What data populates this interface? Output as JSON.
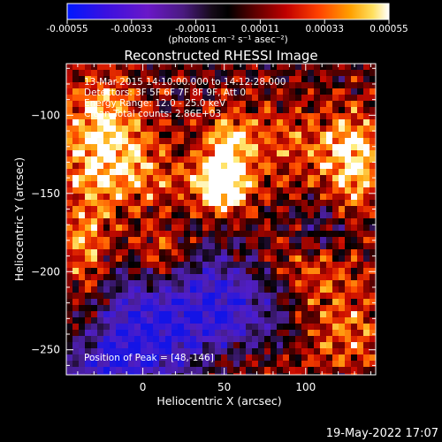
{
  "colorbar": {
    "tick_labels": [
      "-0.00055",
      "-0.00033",
      "-0.00011",
      "0.00011",
      "0.00033",
      "0.00055"
    ],
    "unit_label": "(photons cm⁻² s⁻¹ asec⁻²)",
    "range": [
      -0.00055,
      0.00055
    ]
  },
  "chart_data": {
    "type": "heatmap",
    "title": "Reconstructed RHESSI Image",
    "xlabel": "Heliocentric X (arcsec)",
    "ylabel": "Heliocentric Y (arcsec)",
    "xlim": [
      -47,
      143
    ],
    "ylim": [
      -266,
      -67
    ],
    "x_ticks": [
      0,
      50,
      100
    ],
    "x_tick_labels": [
      "0",
      "50",
      "100"
    ],
    "y_ticks": [
      -250,
      -200,
      -150,
      -100
    ],
    "y_tick_labels": [
      "−250",
      "−200",
      "−150",
      "−100"
    ],
    "info_lines": [
      "13-Mar-2015 14:10:00.000 to 14:12:28.000",
      "Detectors: 3F 5F 6F 7F 8F 9F, Att 0",
      "Energy Range: 12.0 - 25.0 keV",
      "Clean    Total counts: 2.86E+03"
    ],
    "peak_label": "Position of Peak = [48,-146]",
    "peak": [
      48,
      -146
    ],
    "colormap": "rainbow-hot (blue-purple-black-red-orange-yellow-white)"
  },
  "footer": {
    "date": "19-May-2022 17:07"
  }
}
